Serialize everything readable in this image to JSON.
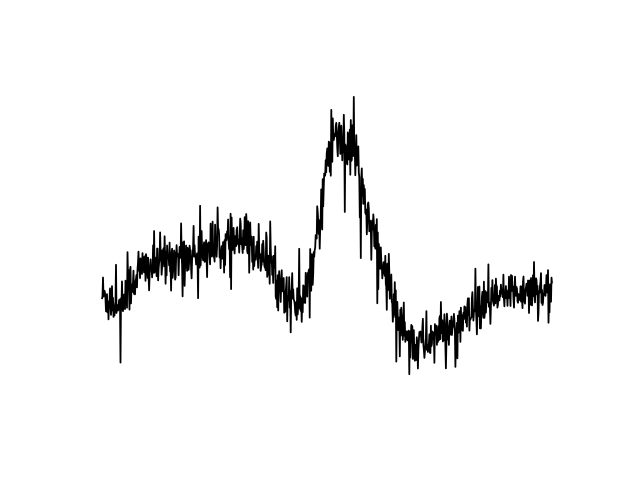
{
  "chart_data": {
    "type": "line",
    "title": "",
    "xlabel": "",
    "ylabel": "",
    "axes_visible": false,
    "grid": false,
    "line_color": "#000000",
    "xlim": [
      0,
      1
    ],
    "ylim": [
      0,
      1
    ],
    "envelope": {
      "description_of_shape": "dense noisy trace: broad hump, sharp central peak, trough, gentle rise",
      "x": [
        0.0,
        0.04,
        0.08,
        0.12,
        0.16,
        0.2,
        0.24,
        0.28,
        0.32,
        0.36,
        0.4,
        0.44,
        0.46,
        0.48,
        0.5,
        0.52,
        0.54,
        0.56,
        0.58,
        0.6,
        0.62,
        0.64,
        0.66,
        0.68,
        0.7,
        0.72,
        0.74,
        0.76,
        0.8,
        0.84,
        0.88,
        0.92,
        0.96,
        1.0
      ],
      "center": [
        0.34,
        0.31,
        0.41,
        0.43,
        0.45,
        0.46,
        0.48,
        0.49,
        0.5,
        0.46,
        0.36,
        0.3,
        0.36,
        0.52,
        0.74,
        0.82,
        0.81,
        0.76,
        0.64,
        0.52,
        0.44,
        0.36,
        0.28,
        0.22,
        0.19,
        0.2,
        0.22,
        0.23,
        0.26,
        0.3,
        0.33,
        0.35,
        0.36,
        0.35
      ],
      "noise": [
        0.07,
        0.07,
        0.07,
        0.07,
        0.07,
        0.07,
        0.07,
        0.07,
        0.07,
        0.07,
        0.07,
        0.07,
        0.07,
        0.08,
        0.1,
        0.11,
        0.11,
        0.1,
        0.09,
        0.08,
        0.07,
        0.07,
        0.07,
        0.07,
        0.07,
        0.07,
        0.07,
        0.06,
        0.06,
        0.06,
        0.06,
        0.06,
        0.06,
        0.06
      ]
    },
    "n_points": 900
  }
}
